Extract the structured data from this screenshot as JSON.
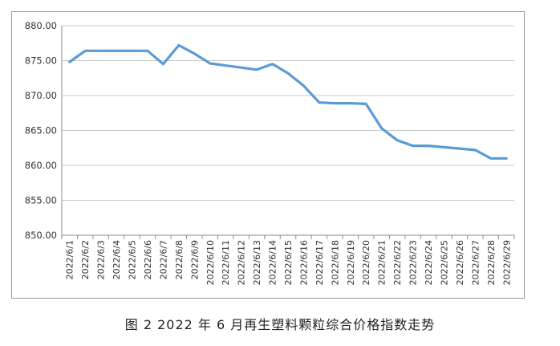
{
  "chart_data": {
    "type": "line",
    "title": "",
    "xlabel": "",
    "ylabel": "",
    "ylim": [
      850,
      880
    ],
    "y_ticks": [
      "850.00",
      "855.00",
      "860.00",
      "865.00",
      "870.00",
      "875.00",
      "880.00"
    ],
    "grid": "horizontal",
    "legend": "none",
    "line_color": "#5b9bd5",
    "categories": [
      "2022/6/1",
      "2022/6/2",
      "2022/6/3",
      "2022/6/4",
      "2022/6/5",
      "2022/6/6",
      "2022/6/7",
      "2022/6/8",
      "2022/6/9",
      "2022/6/10",
      "2022/6/11",
      "2022/6/12",
      "2022/6/13",
      "2022/6/14",
      "2022/6/15",
      "2022/6/16",
      "2022/6/17",
      "2022/6/18",
      "2022/6/19",
      "2022/6/20",
      "2022/6/21",
      "2022/6/22",
      "2022/6/23",
      "2022/6/24",
      "2022/6/25",
      "2022/6/26",
      "2022/6/27",
      "2022/6/28",
      "2022/6/29"
    ],
    "series": [
      {
        "values": [
          874.8,
          876.4,
          876.4,
          876.4,
          876.4,
          876.4,
          874.5,
          877.2,
          876.0,
          874.6,
          874.3,
          874.0,
          873.7,
          874.5,
          873.2,
          871.4,
          869.0,
          868.9,
          868.9,
          868.8,
          865.3,
          863.6,
          862.8,
          862.8,
          862.6,
          862.4,
          862.2,
          861.0,
          861.0
        ]
      }
    ]
  },
  "caption": "图 2  2022 年 6 月再生塑料颗粒综合价格指数走势"
}
